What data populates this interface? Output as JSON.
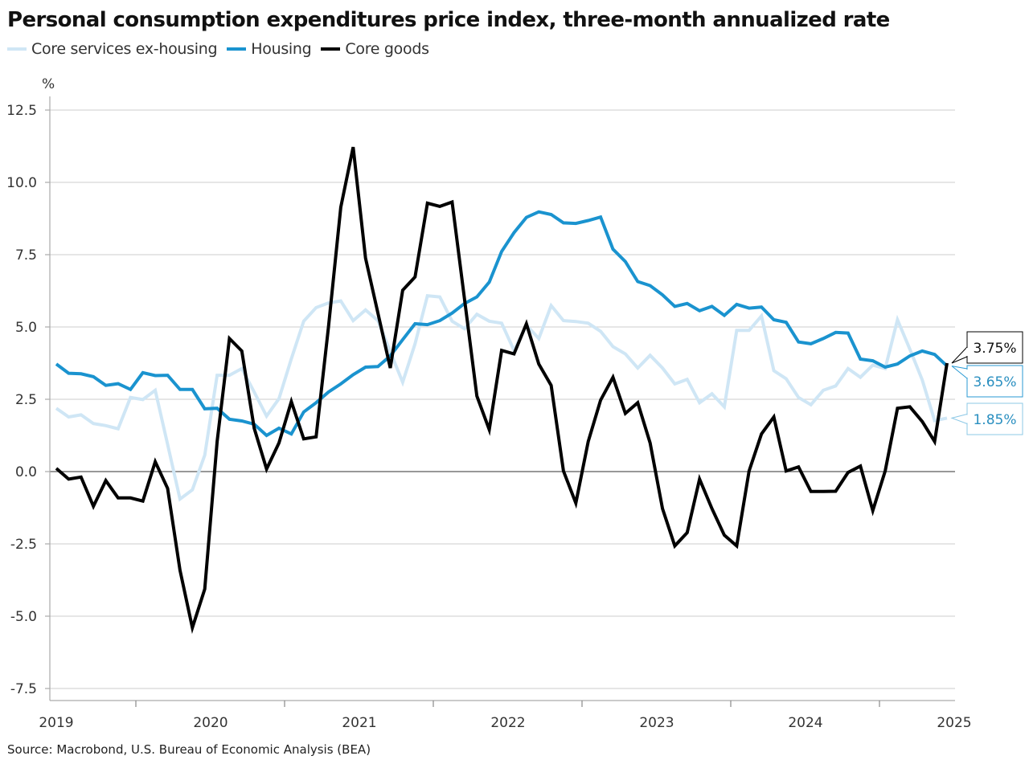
{
  "chart_data": {
    "type": "line",
    "title": "Personal consumption expenditures price index, three-month annualized rate",
    "ylabel": "%",
    "xlabel": "",
    "ylim": [
      -7.5,
      12.5
    ],
    "yticks": [
      "12.5",
      "10.0",
      "7.5",
      "5.0",
      "2.5",
      "0.0",
      "-2.5",
      "-5.0",
      "-7.5"
    ],
    "xticks": [
      "2019",
      "2020",
      "2021",
      "2022",
      "2023",
      "2024",
      "2025"
    ],
    "grid": true,
    "legend": "top-left",
    "x": [
      "2019-01",
      "2019-02",
      "2019-03",
      "2019-04",
      "2019-05",
      "2019-06",
      "2019-07",
      "2019-08",
      "2019-09",
      "2019-10",
      "2019-11",
      "2019-12",
      "2020-01",
      "2020-02",
      "2020-03",
      "2020-04",
      "2020-05",
      "2020-06",
      "2020-07",
      "2020-08",
      "2020-09",
      "2020-10",
      "2020-11",
      "2020-12",
      "2021-01",
      "2021-02",
      "2021-03",
      "2021-04",
      "2021-05",
      "2021-06",
      "2021-07",
      "2021-08",
      "2021-09",
      "2021-10",
      "2021-11",
      "2021-12",
      "2022-01",
      "2022-02",
      "2022-03",
      "2022-04",
      "2022-05",
      "2022-06",
      "2022-07",
      "2022-08",
      "2022-09",
      "2022-10",
      "2022-11",
      "2022-12",
      "2023-01",
      "2023-02",
      "2023-03",
      "2023-04",
      "2023-05",
      "2023-06",
      "2023-07",
      "2023-08",
      "2023-09",
      "2023-10",
      "2023-11",
      "2023-12",
      "2024-01",
      "2024-02",
      "2024-03",
      "2024-04",
      "2024-05",
      "2024-06",
      "2024-07",
      "2024-08",
      "2024-09",
      "2024-10",
      "2024-11",
      "2024-12",
      "2025-01"
    ],
    "series": [
      {
        "name": "Core services ex-housing",
        "color": "#cfe6f5",
        "end_label": "1.85%",
        "values": [
          2.19,
          1.89,
          1.96,
          1.66,
          1.59,
          1.48,
          2.56,
          2.49,
          2.81,
          0.94,
          -0.95,
          -0.63,
          0.57,
          3.33,
          3.33,
          3.56,
          2.75,
          1.92,
          2.52,
          3.9,
          5.2,
          5.67,
          5.83,
          5.9,
          5.22,
          5.59,
          5.22,
          4.14,
          3.09,
          4.42,
          6.08,
          6.04,
          5.2,
          4.94,
          5.44,
          5.2,
          5.13,
          4.19,
          5.06,
          4.6,
          5.74,
          5.22,
          5.19,
          5.13,
          4.85,
          4.32,
          4.07,
          3.58,
          4.02,
          3.58,
          3.03,
          3.19,
          2.38,
          2.69,
          2.24,
          4.88,
          4.88,
          5.38,
          3.49,
          3.21,
          2.56,
          2.31,
          2.81,
          2.96,
          3.56,
          3.26,
          3.68,
          3.56,
          5.25,
          4.23,
          3.17,
          1.76,
          1.85
        ]
      },
      {
        "name": "Housing",
        "color": "#1a93cf",
        "end_label": "3.65%",
        "values": [
          3.72,
          3.4,
          3.38,
          3.28,
          2.98,
          3.04,
          2.84,
          3.42,
          3.32,
          3.33,
          2.84,
          2.84,
          2.17,
          2.19,
          1.81,
          1.75,
          1.64,
          1.25,
          1.5,
          1.3,
          2.06,
          2.38,
          2.75,
          3.03,
          3.35,
          3.61,
          3.63,
          4.0,
          4.56,
          5.11,
          5.08,
          5.22,
          5.48,
          5.81,
          6.04,
          6.55,
          7.61,
          8.26,
          8.79,
          8.98,
          8.89,
          8.6,
          8.58,
          8.68,
          8.8,
          7.69,
          7.26,
          6.57,
          6.43,
          6.11,
          5.71,
          5.81,
          5.56,
          5.71,
          5.4,
          5.78,
          5.65,
          5.69,
          5.25,
          5.16,
          4.48,
          4.42,
          4.6,
          4.81,
          4.79,
          3.89,
          3.83,
          3.61,
          3.72,
          4.0,
          4.17,
          4.05,
          3.65
        ]
      },
      {
        "name": "Core goods",
        "color": "#000000",
        "end_label": "3.75%",
        "values": [
          0.11,
          -0.26,
          -0.19,
          -1.2,
          -0.31,
          -0.91,
          -0.91,
          -1.02,
          0.34,
          -0.58,
          -3.41,
          -5.4,
          -4.06,
          1.04,
          4.6,
          4.17,
          1.5,
          0.09,
          0.99,
          2.42,
          1.13,
          1.2,
          5.0,
          9.14,
          11.22,
          7.38,
          5.48,
          3.58,
          6.27,
          6.73,
          9.28,
          9.17,
          9.32,
          5.97,
          2.61,
          1.45,
          4.19,
          4.07,
          5.11,
          3.72,
          2.98,
          0.02,
          -1.09,
          1.04,
          2.47,
          3.26,
          2.01,
          2.38,
          0.99,
          -1.28,
          -2.57,
          -2.11,
          -0.26,
          -1.28,
          -2.2,
          -2.57,
          0.02,
          1.3,
          1.89,
          0.02,
          0.16,
          -0.69,
          -0.69,
          -0.68,
          -0.03,
          0.19,
          -1.35,
          0.02,
          2.19,
          2.24,
          1.73,
          1.04,
          3.75
        ]
      }
    ]
  },
  "source": "Source: Macrobond, U.S. Bureau of Economic Analysis (BEA)"
}
